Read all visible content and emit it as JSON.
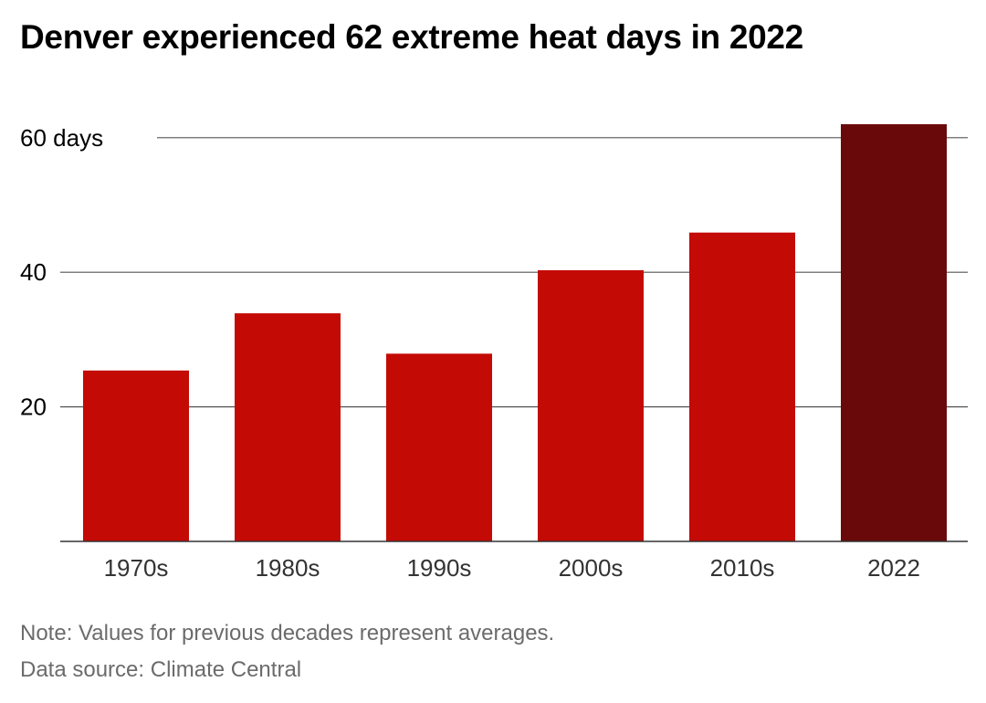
{
  "title": "Denver experienced 62 extreme heat days in 2022",
  "note": "Note: Values for previous decades represent averages.",
  "source": "Data source: Climate Central",
  "colors": {
    "bar": "#c40a04",
    "highlight": "#690909",
    "grid": "#555555",
    "axis": "#333333",
    "text": "#000000",
    "tick_label": "#333333"
  },
  "chart_data": {
    "type": "bar",
    "title": "Denver experienced 62 extreme heat days in 2022",
    "xlabel": "",
    "ylabel": "",
    "categories": [
      "1970s",
      "1980s",
      "1990s",
      "2000s",
      "2010s",
      "2022"
    ],
    "values": [
      25.4,
      33.9,
      27.9,
      40.3,
      45.9,
      62
    ],
    "highlight_index": 5,
    "ylim": [
      0,
      60
    ],
    "y_ticks": [
      {
        "value": 20,
        "label": "20"
      },
      {
        "value": 40,
        "label": "40"
      },
      {
        "value": 60,
        "label": "60 days"
      }
    ],
    "grid": true,
    "legend": "none"
  }
}
